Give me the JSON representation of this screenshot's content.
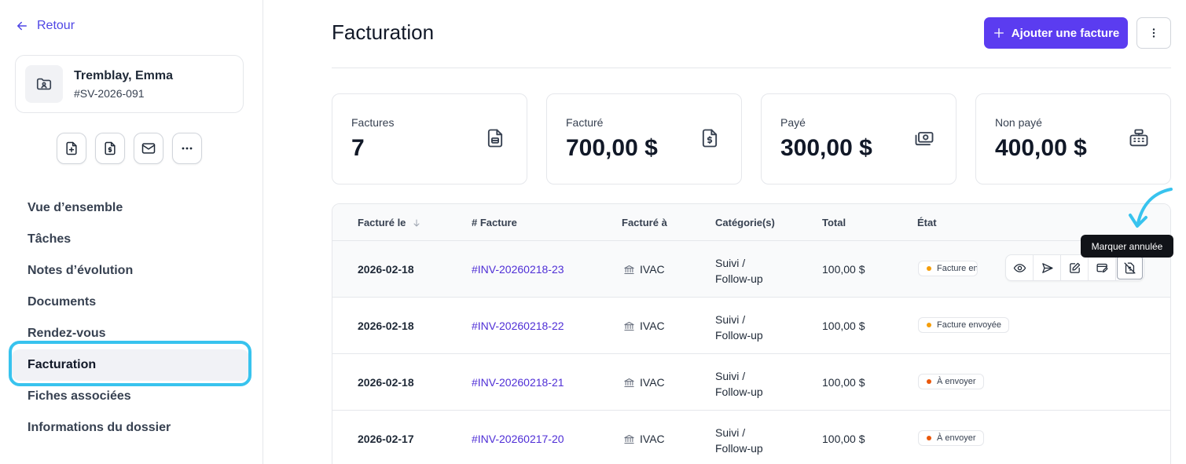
{
  "nav_back": {
    "label": "Retour"
  },
  "client": {
    "name": "Tremblay, Emma",
    "file_id": "#SV-2026-091"
  },
  "quick_actions": [
    {
      "icon": "file-plus-icon"
    },
    {
      "icon": "invoice-icon"
    },
    {
      "icon": "mail-icon"
    },
    {
      "icon": "more-icon"
    }
  ],
  "sidebar": {
    "items": [
      {
        "label": "Vue d’ensemble"
      },
      {
        "label": "Tâches"
      },
      {
        "label": "Notes d’évolution"
      },
      {
        "label": "Documents"
      },
      {
        "label": "Rendez-vous"
      },
      {
        "label": "Facturation",
        "active": true
      },
      {
        "label": "Fiches associées"
      },
      {
        "label": "Informations du dossier"
      }
    ]
  },
  "header": {
    "title": "Facturation",
    "add_label": "Ajouter une facture"
  },
  "stats": [
    {
      "label": "Factures",
      "value": "7",
      "icon": "document-icon"
    },
    {
      "label": "Facturé",
      "value": "700,00 $",
      "icon": "invoice-dollar-icon"
    },
    {
      "label": "Payé",
      "value": "300,00 $",
      "icon": "cash-icon"
    },
    {
      "label": "Non payé",
      "value": "400,00 $",
      "icon": "cash-register-icon"
    }
  ],
  "table": {
    "columns": [
      "Facturé le",
      "# Facture",
      "Facturé à",
      "Catégorie(s)",
      "Total",
      "État"
    ],
    "rows": [
      {
        "date": "2026-02-18",
        "number": "#INV-20260218-23",
        "billed_to": "IVAC",
        "category_1": "Suivi /",
        "category_2": "Follow-up",
        "total": "100,00 $",
        "status": "Facture envoyée"
      },
      {
        "date": "2026-02-18",
        "number": "#INV-20260218-22",
        "billed_to": "IVAC",
        "category_1": "Suivi /",
        "category_2": "Follow-up",
        "total": "100,00 $",
        "status": "Facture envoyée"
      },
      {
        "date": "2026-02-18",
        "number": "#INV-20260218-21",
        "billed_to": "IVAC",
        "category_1": "Suivi /",
        "category_2": "Follow-up",
        "total": "100,00 $",
        "status": "À envoyer"
      },
      {
        "date": "2026-02-17",
        "number": "#INV-20260217-20",
        "billed_to": "IVAC",
        "category_1": "Suivi /",
        "category_2": "Follow-up",
        "total": "100,00 $",
        "status": "À envoyer"
      }
    ]
  },
  "row_actions": [
    "eye-icon",
    "send-icon",
    "edit-icon",
    "payment-icon",
    "cancel-invoice-icon"
  ],
  "tooltip": {
    "text": "Marquer annulée"
  },
  "colors": {
    "accent": "#5b3cf0",
    "link": "#4f2fd6",
    "status_sent": "#f59e0b",
    "status_todo": "#ea580c",
    "highlight": "#38c3ee"
  }
}
